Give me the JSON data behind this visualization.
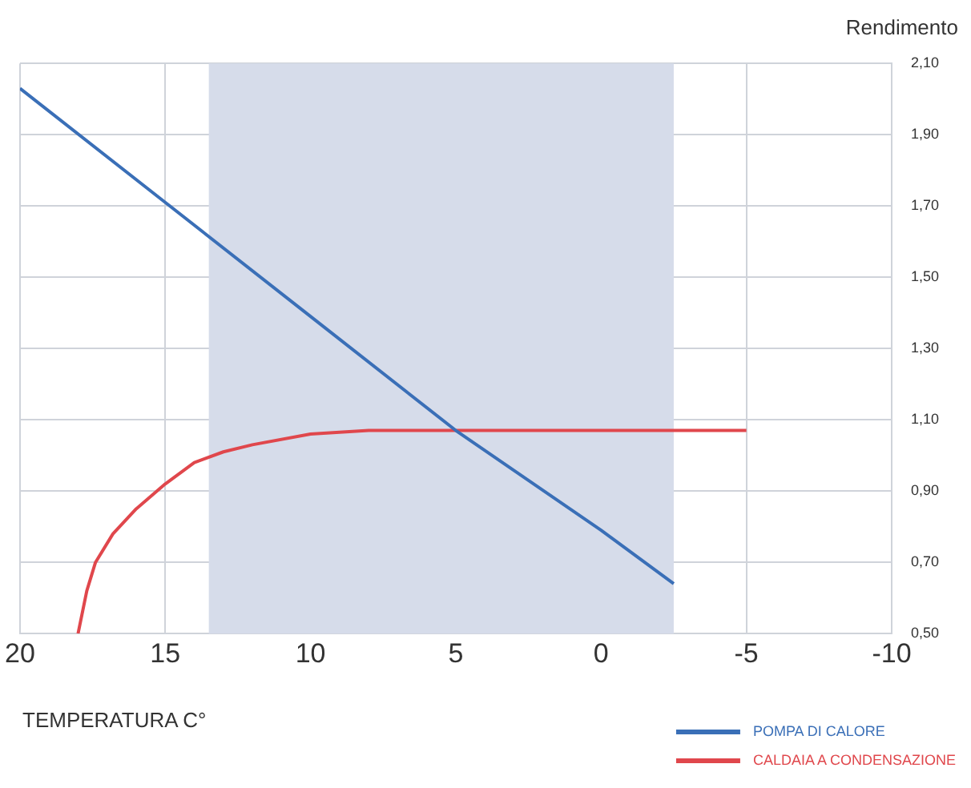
{
  "chart_data": {
    "type": "line",
    "xlabel": "TEMPERATURA C°",
    "ylabel": "Rendimento",
    "xlim": [
      20,
      -10
    ],
    "xticks": [
      20,
      15,
      10,
      5,
      0,
      -5,
      -10
    ],
    "ylim": [
      0.5,
      2.1
    ],
    "yticks": [
      {
        "value": 0.5,
        "label": "0,50"
      },
      {
        "value": 0.7,
        "label": "0,70"
      },
      {
        "value": 0.9,
        "label": "0,90"
      },
      {
        "value": 1.1,
        "label": "1,10"
      },
      {
        "value": 1.3,
        "label": "1,30"
      },
      {
        "value": 1.5,
        "label": "1,50"
      },
      {
        "value": 1.7,
        "label": "1,70"
      },
      {
        "value": 1.9,
        "label": "1,90"
      },
      {
        "value": 2.1,
        "label": "2,10"
      }
    ],
    "series": [
      {
        "name": "POMPA DI CALORE",
        "color": "#3a6fb7",
        "x": [
          20,
          15,
          10,
          5,
          2.5,
          0,
          -2.5
        ],
        "values": [
          2.03,
          1.71,
          1.39,
          1.07,
          0.93,
          0.79,
          0.64
        ]
      },
      {
        "name": "CALDAIA A CONDENSAZIONE",
        "color": "#e0474c",
        "x": [
          18,
          17.7,
          17.4,
          16.8,
          16,
          15,
          14,
          13,
          12,
          10,
          8,
          -5
        ],
        "values": [
          0.5,
          0.62,
          0.7,
          0.78,
          0.85,
          0.92,
          0.98,
          1.01,
          1.03,
          1.06,
          1.07,
          1.07
        ]
      }
    ],
    "bands": [
      {
        "axis": "x",
        "from": 13.5,
        "to": -2.5,
        "color": "#d6dcea"
      }
    ],
    "grid": true,
    "legend": "bottom right",
    "marker": "none",
    "line_style": "solid"
  }
}
